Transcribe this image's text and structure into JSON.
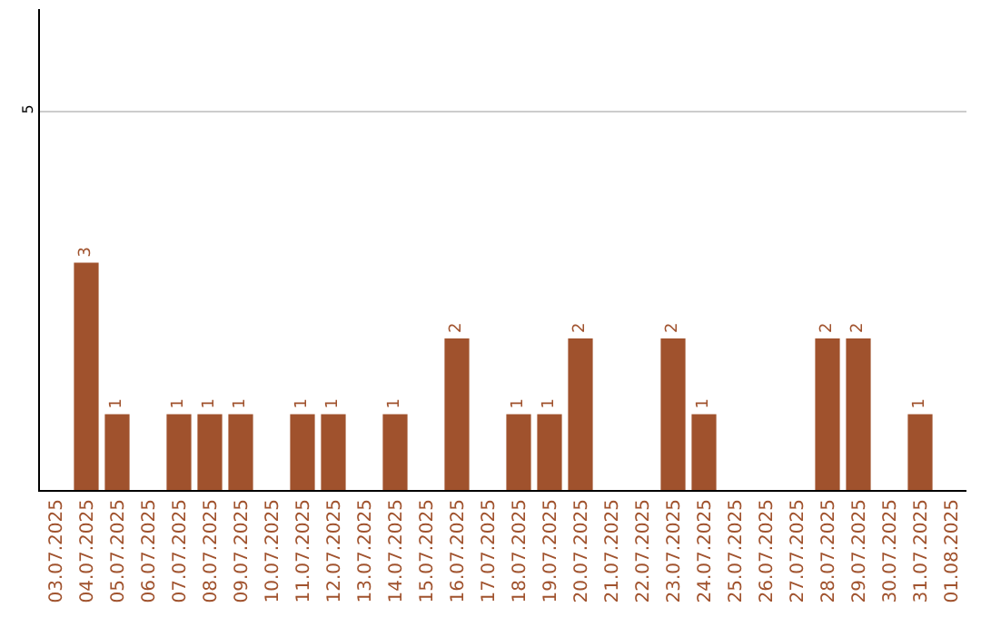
{
  "chart_data": {
    "type": "bar",
    "categories": [
      "03.07.2025",
      "04.07.2025",
      "05.07.2025",
      "06.07.2025",
      "07.07.2025",
      "08.07.2025",
      "09.07.2025",
      "10.07.2025",
      "11.07.2025",
      "12.07.2025",
      "13.07.2025",
      "14.07.2025",
      "15.07.2025",
      "16.07.2025",
      "17.07.2025",
      "18.07.2025",
      "19.07.2025",
      "20.07.2025",
      "21.07.2025",
      "22.07.2025",
      "23.07.2025",
      "24.07.2025",
      "25.07.2025",
      "26.07.2025",
      "27.07.2025",
      "28.07.2025",
      "29.07.2025",
      "30.07.2025",
      "31.07.2025",
      "01.08.2025"
    ],
    "values": [
      0,
      3,
      1,
      0,
      1,
      1,
      1,
      0,
      1,
      1,
      0,
      1,
      0,
      2,
      0,
      1,
      1,
      2,
      0,
      0,
      2,
      1,
      0,
      0,
      0,
      2,
      2,
      0,
      1,
      0
    ],
    "value_labels": [
      null,
      "3",
      "1",
      null,
      "1",
      "1",
      "1",
      null,
      "1",
      "1",
      null,
      "1",
      null,
      "2",
      null,
      "1",
      "1",
      "2",
      null,
      null,
      "2",
      "1",
      null,
      null,
      null,
      "2",
      "2",
      null,
      "1",
      null
    ],
    "color": "#a0522d",
    "ylim": [
      0,
      6.35
    ],
    "yticks": [
      5
    ],
    "grid": "y"
  }
}
